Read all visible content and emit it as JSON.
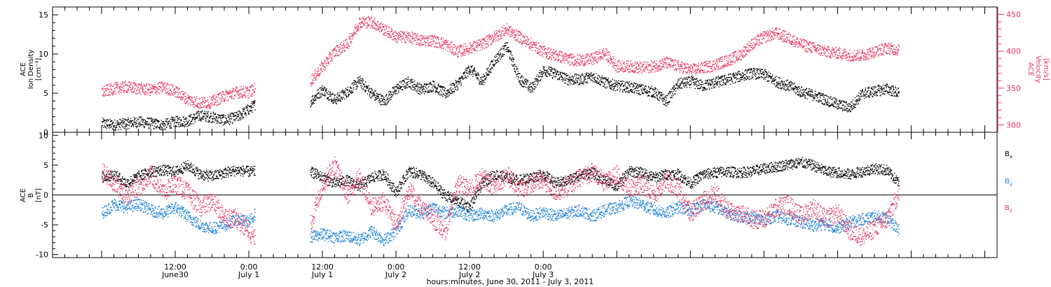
{
  "chart_data": [
    {
      "type": "scatter",
      "panel": "density-velocity",
      "ylabel": [
        "ACE",
        "Ion Density",
        "[cm⁻³]"
      ],
      "y2label": [
        "ACE",
        "Velocity",
        "[km/s]"
      ],
      "ylim": [
        0,
        16
      ],
      "y2lim": [
        290,
        460
      ],
      "yticks": [
        0,
        5,
        10,
        15
      ],
      "y2ticks": [
        300,
        350,
        400,
        450
      ],
      "colors": {
        "density": "#000000",
        "velocity": "#e8345d"
      },
      "series": [
        {
          "key": "density",
          "axis": "left",
          "x": [
            0,
            2,
            4,
            6,
            8,
            10,
            12,
            14,
            16,
            18,
            20,
            22,
            24,
            25,
            34,
            36,
            38,
            40,
            42,
            44,
            46,
            48,
            50,
            52,
            54,
            56,
            58,
            60,
            62,
            64,
            66,
            68,
            70,
            72,
            74,
            76,
            78,
            80,
            82,
            84,
            86,
            88,
            90,
            92,
            94,
            96,
            98,
            100,
            102,
            104,
            106,
            108,
            110,
            112,
            114,
            116,
            118,
            120,
            122,
            124,
            126,
            128,
            130
          ],
          "values": [
            1.2,
            1.0,
            1.2,
            1.4,
            1.2,
            1.0,
            1.4,
            1.5,
            2.2,
            2.0,
            1.6,
            2.0,
            3.0,
            3.6,
            4.0,
            5.5,
            4.2,
            5.2,
            6.6,
            5.0,
            4.0,
            5.6,
            6.5,
            5.5,
            6.0,
            5.0,
            6.2,
            8.2,
            6.5,
            9.2,
            11.0,
            7.0,
            5.6,
            8.0,
            7.5,
            6.8,
            6.8,
            7.2,
            6.4,
            6.0,
            5.8,
            5.5,
            5.2,
            4.0,
            6.2,
            6.5,
            6.0,
            6.4,
            6.8,
            7.2,
            7.6,
            7.4,
            6.5,
            6.0,
            5.2,
            4.8,
            4.2,
            3.6,
            3.2,
            5.0,
            5.3,
            5.6,
            5.0
          ]
        },
        {
          "key": "velocity",
          "axis": "right",
          "x": [
            0,
            2,
            4,
            6,
            8,
            10,
            12,
            14,
            16,
            18,
            20,
            22,
            24,
            25,
            34,
            36,
            38,
            40,
            42,
            44,
            46,
            48,
            50,
            52,
            54,
            56,
            58,
            60,
            62,
            64,
            66,
            68,
            70,
            72,
            74,
            76,
            78,
            80,
            82,
            84,
            86,
            88,
            90,
            92,
            94,
            96,
            98,
            100,
            102,
            104,
            106,
            108,
            110,
            112,
            114,
            116,
            118,
            120,
            122,
            124,
            126,
            128,
            130
          ],
          "values": [
            345,
            350,
            352,
            350,
            348,
            352,
            346,
            335,
            330,
            332,
            340,
            345,
            345,
            350,
            360,
            380,
            400,
            410,
            440,
            440,
            430,
            420,
            420,
            415,
            415,
            410,
            400,
            405,
            410,
            420,
            430,
            420,
            410,
            400,
            395,
            390,
            388,
            390,
            398,
            380,
            380,
            378,
            380,
            385,
            380,
            375,
            378,
            382,
            388,
            395,
            410,
            420,
            425,
            418,
            410,
            405,
            400,
            398,
            395,
            395,
            400,
            405,
            402
          ]
        }
      ]
    },
    {
      "type": "scatter",
      "panel": "magnetic-field",
      "ylabel": [
        "ACE",
        "B",
        "[nT]"
      ],
      "ylim": [
        -10.5,
        10.5
      ],
      "yticks": [
        -10,
        -5,
        0,
        5,
        10
      ],
      "zero_line": 0,
      "legend": [
        {
          "label": "B",
          "sub": "x",
          "color": "#000000"
        },
        {
          "label": "B",
          "sub": "y",
          "color": "#1a7fd8"
        },
        {
          "label": "B",
          "sub": "z",
          "color": "#e8345d"
        }
      ],
      "series": [
        {
          "key": "bx",
          "x": [
            0,
            2,
            4,
            6,
            8,
            10,
            12,
            14,
            16,
            18,
            20,
            22,
            24,
            25,
            34,
            36,
            38,
            40,
            42,
            44,
            46,
            48,
            50,
            52,
            54,
            56,
            58,
            60,
            62,
            64,
            66,
            68,
            70,
            72,
            74,
            76,
            78,
            80,
            82,
            84,
            86,
            88,
            90,
            92,
            94,
            96,
            98,
            100,
            102,
            104,
            106,
            108,
            110,
            112,
            114,
            116,
            118,
            120,
            122,
            124,
            126,
            128,
            130
          ],
          "values": [
            3.0,
            3.5,
            2.0,
            3.2,
            4.0,
            4.2,
            4.0,
            5.0,
            3.5,
            3.2,
            3.8,
            4.2,
            4.0,
            4.0,
            4.0,
            3.0,
            2.0,
            2.5,
            1.5,
            3.0,
            3.5,
            0.5,
            4.0,
            3.5,
            2.0,
            0.0,
            -1.0,
            -2.0,
            2.0,
            3.5,
            3.0,
            2.5,
            3.0,
            3.5,
            2.0,
            2.5,
            3.5,
            3.8,
            2.5,
            1.5,
            4.0,
            3.8,
            3.0,
            3.5,
            3.5,
            2.0,
            3.5,
            3.8,
            4.0,
            3.8,
            4.0,
            4.5,
            4.8,
            5.2,
            5.5,
            5.0,
            4.0,
            3.8,
            3.5,
            4.0,
            4.5,
            4.2,
            2.0
          ]
        },
        {
          "key": "by",
          "x": [
            0,
            2,
            4,
            6,
            8,
            10,
            12,
            14,
            16,
            18,
            20,
            22,
            24,
            25,
            34,
            36,
            38,
            40,
            42,
            44,
            46,
            48,
            50,
            52,
            54,
            56,
            58,
            60,
            62,
            64,
            66,
            68,
            70,
            72,
            74,
            76,
            78,
            80,
            82,
            84,
            86,
            88,
            90,
            92,
            94,
            96,
            98,
            100,
            102,
            104,
            106,
            108,
            110,
            112,
            114,
            116,
            118,
            120,
            122,
            124,
            126,
            128,
            130
          ],
          "values": [
            -3.0,
            -1.5,
            -2.0,
            -1.5,
            -2.5,
            -3.0,
            -2.0,
            -3.5,
            -5.0,
            -5.5,
            -5.0,
            -4.0,
            -4.5,
            -3.0,
            -7.0,
            -6.5,
            -7.0,
            -6.8,
            -7.5,
            -6.0,
            -7.5,
            -6.0,
            -2.5,
            -3.0,
            -2.0,
            -3.0,
            -2.5,
            -3.5,
            -3.0,
            -3.5,
            -2.5,
            -2.0,
            -3.5,
            -2.8,
            -3.5,
            -3.0,
            -2.5,
            -3.5,
            -2.5,
            -2.0,
            -1.0,
            -1.5,
            -2.5,
            -3.0,
            -2.0,
            -2.5,
            -1.5,
            -2.0,
            -3.0,
            -3.5,
            -3.8,
            -4.0,
            -3.5,
            -4.0,
            -4.5,
            -5.0,
            -4.8,
            -5.5,
            -4.5,
            -4.0,
            -3.5,
            -3.8,
            -6.0
          ]
        },
        {
          "key": "bz",
          "x": [
            0,
            2,
            4,
            6,
            8,
            10,
            12,
            14,
            16,
            18,
            20,
            22,
            24,
            25,
            34,
            36,
            38,
            40,
            42,
            44,
            46,
            48,
            50,
            52,
            54,
            56,
            58,
            60,
            62,
            64,
            66,
            68,
            70,
            72,
            74,
            76,
            78,
            80,
            82,
            84,
            86,
            88,
            90,
            92,
            94,
            96,
            98,
            100,
            102,
            104,
            106,
            108,
            110,
            112,
            114,
            116,
            118,
            120,
            122,
            124,
            126,
            128,
            130
          ],
          "values": [
            4.0,
            2.0,
            0.0,
            1.5,
            3.5,
            0.5,
            2.0,
            0.5,
            -2.0,
            -1.0,
            -3.5,
            -4.0,
            -6.0,
            -7.5,
            -5.0,
            2.0,
            5.0,
            0.0,
            3.0,
            -2.0,
            -1.0,
            -5.0,
            1.0,
            -2.0,
            -4.0,
            -6.0,
            2.0,
            1.0,
            3.0,
            1.5,
            3.5,
            1.0,
            2.0,
            2.5,
            0.5,
            1.5,
            3.0,
            4.0,
            2.0,
            3.5,
            1.0,
            2.0,
            0.0,
            2.5,
            1.0,
            -3.0,
            -1.0,
            0.5,
            -2.5,
            -3.0,
            -4.0,
            -4.0,
            -2.0,
            -1.5,
            -3.5,
            -2.0,
            -4.0,
            -3.0,
            -6.0,
            -7.0,
            -5.5,
            -4.0,
            0.5
          ]
        }
      ]
    }
  ],
  "x_axis": {
    "range_hours": [
      -8,
      146
    ],
    "major_ticks": [
      {
        "x": 12,
        "time": "12:00",
        "day": "June30"
      },
      {
        "x": 24,
        "time": "0:00",
        "day": "July 1"
      },
      {
        "x": 36,
        "time": "12:00",
        "day": "July 1"
      },
      {
        "x": 48,
        "time": "0:00",
        "day": "July 2"
      },
      {
        "x": 60,
        "time": "12:00",
        "day": "July 2"
      },
      {
        "x": 72,
        "time": "0:00",
        "day": "July 3"
      }
    ],
    "label": "hours:minutes, June 30, 2011 - July  3, 2011"
  }
}
